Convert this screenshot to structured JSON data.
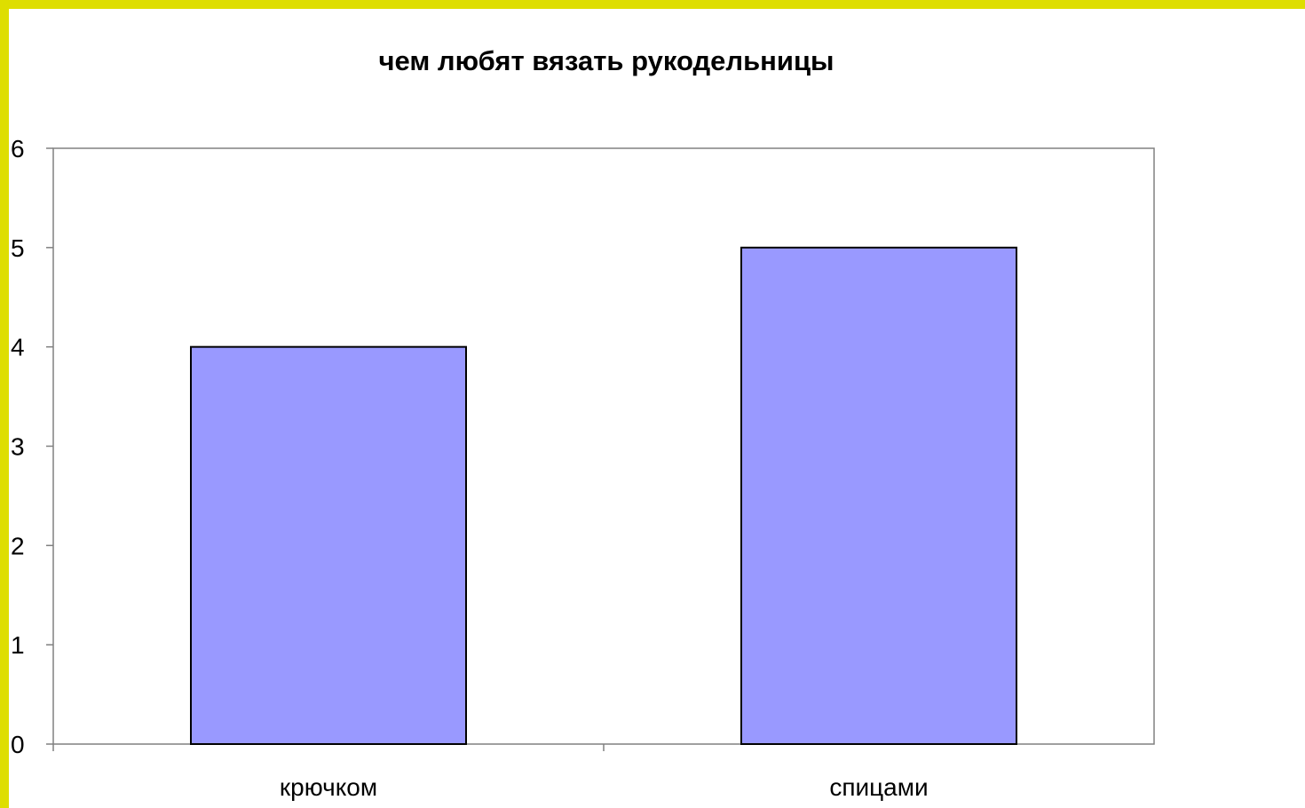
{
  "chart_data": {
    "type": "bar",
    "title": "чем любят вязать рукодельницы",
    "categories": [
      "крючком",
      "спицами"
    ],
    "values": [
      4,
      5
    ],
    "ylim": [
      0,
      6
    ],
    "yticks": [
      0,
      1,
      2,
      3,
      4,
      5,
      6
    ],
    "xlabel": "",
    "ylabel": "",
    "grid": false,
    "legend": "none",
    "bar_color": "#9999ff",
    "frame_color": "#dede00"
  }
}
